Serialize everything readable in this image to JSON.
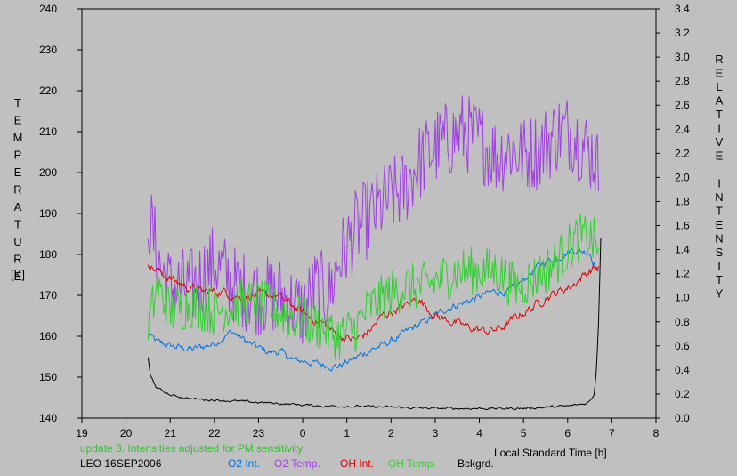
{
  "chart_data": {
    "type": "line",
    "x_axis": {
      "range": [
        19,
        8
      ],
      "ticks": [
        "19",
        "20",
        "21",
        "22",
        "23",
        "0",
        "1",
        "2",
        "3",
        "4",
        "5",
        "6",
        "7",
        "8"
      ],
      "label": "Local Standard Time [h]"
    },
    "y_left": {
      "range": [
        140,
        240
      ],
      "ticks": [
        "140",
        "150",
        "160",
        "170",
        "180",
        "190",
        "200",
        "210",
        "220",
        "230",
        "240"
      ],
      "label_letters": [
        "T",
        "E",
        "M",
        "P",
        "E",
        "R",
        "A",
        "T",
        "U",
        "R",
        "E"
      ],
      "unit": "[K]"
    },
    "y_right": {
      "range": [
        0.0,
        3.4
      ],
      "ticks": [
        "0.0",
        "0.2",
        "0.4",
        "0.6",
        "0.8",
        "1.0",
        "1.2",
        "1.4",
        "1.6",
        "1.8",
        "2.0",
        "2.2",
        "2.4",
        "2.6",
        "2.8",
        "3.0",
        "3.2",
        "3.4"
      ],
      "label_letters": [
        "R",
        "E",
        "L",
        "A",
        "T",
        "I",
        "V",
        "E",
        "",
        "I",
        "N",
        "T",
        "E",
        "N",
        "S",
        "I",
        "T",
        "Y"
      ]
    },
    "series": [
      {
        "name": "O2 Int.",
        "axis": "right",
        "color": "#0070e0",
        "noise": 0.025,
        "points": [
          [
            20.5,
            0.7
          ],
          [
            20.7,
            0.63
          ],
          [
            21.0,
            0.6
          ],
          [
            21.5,
            0.57
          ],
          [
            22.0,
            0.62
          ],
          [
            22.4,
            0.72
          ],
          [
            22.8,
            0.62
          ],
          [
            23.2,
            0.55
          ],
          [
            23.5,
            0.55
          ],
          [
            23.8,
            0.48
          ],
          [
            24.1,
            0.47
          ],
          [
            24.5,
            0.44
          ],
          [
            24.8,
            0.43
          ],
          [
            25.2,
            0.5
          ],
          [
            25.5,
            0.56
          ],
          [
            25.9,
            0.62
          ],
          [
            26.2,
            0.68
          ],
          [
            26.5,
            0.75
          ],
          [
            26.9,
            0.83
          ],
          [
            27.3,
            0.92
          ],
          [
            27.8,
            0.98
          ],
          [
            28.3,
            1.05
          ],
          [
            28.7,
            1.05
          ],
          [
            29.0,
            1.15
          ],
          [
            29.3,
            1.25
          ],
          [
            29.5,
            1.3
          ],
          [
            29.8,
            1.34
          ],
          [
            30.1,
            1.4
          ],
          [
            30.5,
            1.38
          ],
          [
            30.7,
            1.2
          ]
        ]
      },
      {
        "name": "O2 Temp.",
        "axis": "left",
        "color": "#a040e0",
        "noise": 10,
        "points": [
          [
            20.5,
            190
          ],
          [
            20.6,
            185
          ],
          [
            20.8,
            176
          ],
          [
            21.0,
            172
          ],
          [
            21.5,
            172
          ],
          [
            22.0,
            178
          ],
          [
            22.5,
            172
          ],
          [
            23.0,
            170
          ],
          [
            23.5,
            170
          ],
          [
            24.0,
            166
          ],
          [
            24.3,
            172
          ],
          [
            24.6,
            170
          ],
          [
            24.8,
            178
          ],
          [
            25.2,
            186
          ],
          [
            25.6,
            190
          ],
          [
            26.0,
            194
          ],
          [
            26.3,
            196
          ],
          [
            26.6,
            202
          ],
          [
            27.0,
            206
          ],
          [
            27.3,
            208
          ],
          [
            27.6,
            210
          ],
          [
            28.0,
            208
          ],
          [
            28.4,
            204
          ],
          [
            28.7,
            206
          ],
          [
            29.0,
            204
          ],
          [
            29.4,
            206
          ],
          [
            29.8,
            210
          ],
          [
            30.1,
            210
          ],
          [
            30.4,
            206
          ],
          [
            30.6,
            204
          ],
          [
            30.7,
            200
          ]
        ]
      },
      {
        "name": "OH Int.",
        "axis": "right",
        "color": "#e00000",
        "noise": 0.03,
        "points": [
          [
            20.5,
            1.3
          ],
          [
            20.6,
            1.25
          ],
          [
            20.9,
            1.18
          ],
          [
            21.3,
            1.1
          ],
          [
            21.7,
            1.05
          ],
          [
            22.2,
            1.05
          ],
          [
            22.6,
            1.0
          ],
          [
            23.0,
            1.02
          ],
          [
            23.4,
            1.02
          ],
          [
            23.8,
            0.93
          ],
          [
            24.2,
            0.83
          ],
          [
            24.5,
            0.78
          ],
          [
            24.8,
            0.68
          ],
          [
            25.2,
            0.65
          ],
          [
            25.5,
            0.72
          ],
          [
            25.8,
            0.85
          ],
          [
            26.1,
            0.9
          ],
          [
            26.4,
            0.95
          ],
          [
            26.6,
            1.0
          ],
          [
            27.0,
            0.85
          ],
          [
            27.4,
            0.8
          ],
          [
            27.8,
            0.75
          ],
          [
            28.2,
            0.72
          ],
          [
            28.5,
            0.75
          ],
          [
            28.8,
            0.83
          ],
          [
            29.2,
            0.92
          ],
          [
            29.5,
            1.0
          ],
          [
            29.8,
            1.05
          ],
          [
            30.1,
            1.1
          ],
          [
            30.4,
            1.2
          ],
          [
            30.6,
            1.25
          ],
          [
            30.7,
            1.25
          ]
        ]
      },
      {
        "name": "OH Temp.",
        "axis": "left",
        "color": "#30d030",
        "noise": 6,
        "points": [
          [
            20.5,
            162
          ],
          [
            20.7,
            172
          ],
          [
            21.0,
            166
          ],
          [
            21.5,
            168
          ],
          [
            22.0,
            166
          ],
          [
            22.5,
            168
          ],
          [
            23.0,
            168
          ],
          [
            23.5,
            166
          ],
          [
            24.0,
            164
          ],
          [
            24.5,
            162
          ],
          [
            24.8,
            160
          ],
          [
            25.2,
            162
          ],
          [
            25.5,
            167
          ],
          [
            25.9,
            170
          ],
          [
            26.3,
            172
          ],
          [
            26.7,
            172
          ],
          [
            27.1,
            174
          ],
          [
            27.5,
            176
          ],
          [
            28.0,
            176
          ],
          [
            28.4,
            176
          ],
          [
            28.8,
            172
          ],
          [
            29.2,
            174
          ],
          [
            29.5,
            176
          ],
          [
            29.9,
            180
          ],
          [
            30.2,
            184
          ],
          [
            30.5,
            184
          ],
          [
            30.7,
            182
          ]
        ]
      },
      {
        "name": "Bckgrd.",
        "axis": "right",
        "color": "#000000",
        "noise": 0.008,
        "points": [
          [
            20.5,
            0.5
          ],
          [
            20.55,
            0.35
          ],
          [
            20.7,
            0.25
          ],
          [
            21.0,
            0.19
          ],
          [
            21.5,
            0.16
          ],
          [
            22.0,
            0.15
          ],
          [
            22.5,
            0.14
          ],
          [
            23.0,
            0.13
          ],
          [
            23.5,
            0.12
          ],
          [
            24.0,
            0.11
          ],
          [
            24.5,
            0.1
          ],
          [
            25.0,
            0.1
          ],
          [
            26.0,
            0.09
          ],
          [
            27.0,
            0.08
          ],
          [
            28.0,
            0.08
          ],
          [
            28.5,
            0.08
          ],
          [
            29.0,
            0.08
          ],
          [
            29.5,
            0.09
          ],
          [
            30.0,
            0.1
          ],
          [
            30.4,
            0.12
          ],
          [
            30.5,
            0.14
          ],
          [
            30.6,
            0.2
          ],
          [
            30.65,
            0.4
          ],
          [
            30.7,
            0.8
          ],
          [
            30.75,
            1.5
          ]
        ]
      }
    ]
  },
  "footer": {
    "update_note": "update 3. Intensities adjusted for PM sensitivity",
    "station": "LEO 16SEP2006",
    "legend": [
      {
        "label": "O2 Int.",
        "color": "#0070e0"
      },
      {
        "label": "O2 Temp.",
        "color": "#a040e0"
      },
      {
        "label": "OH Int.",
        "color": "#e00000"
      },
      {
        "label": "OH Temp.",
        "color": "#30d030"
      },
      {
        "label": "Bckgrd.",
        "color": "#000000"
      }
    ]
  }
}
